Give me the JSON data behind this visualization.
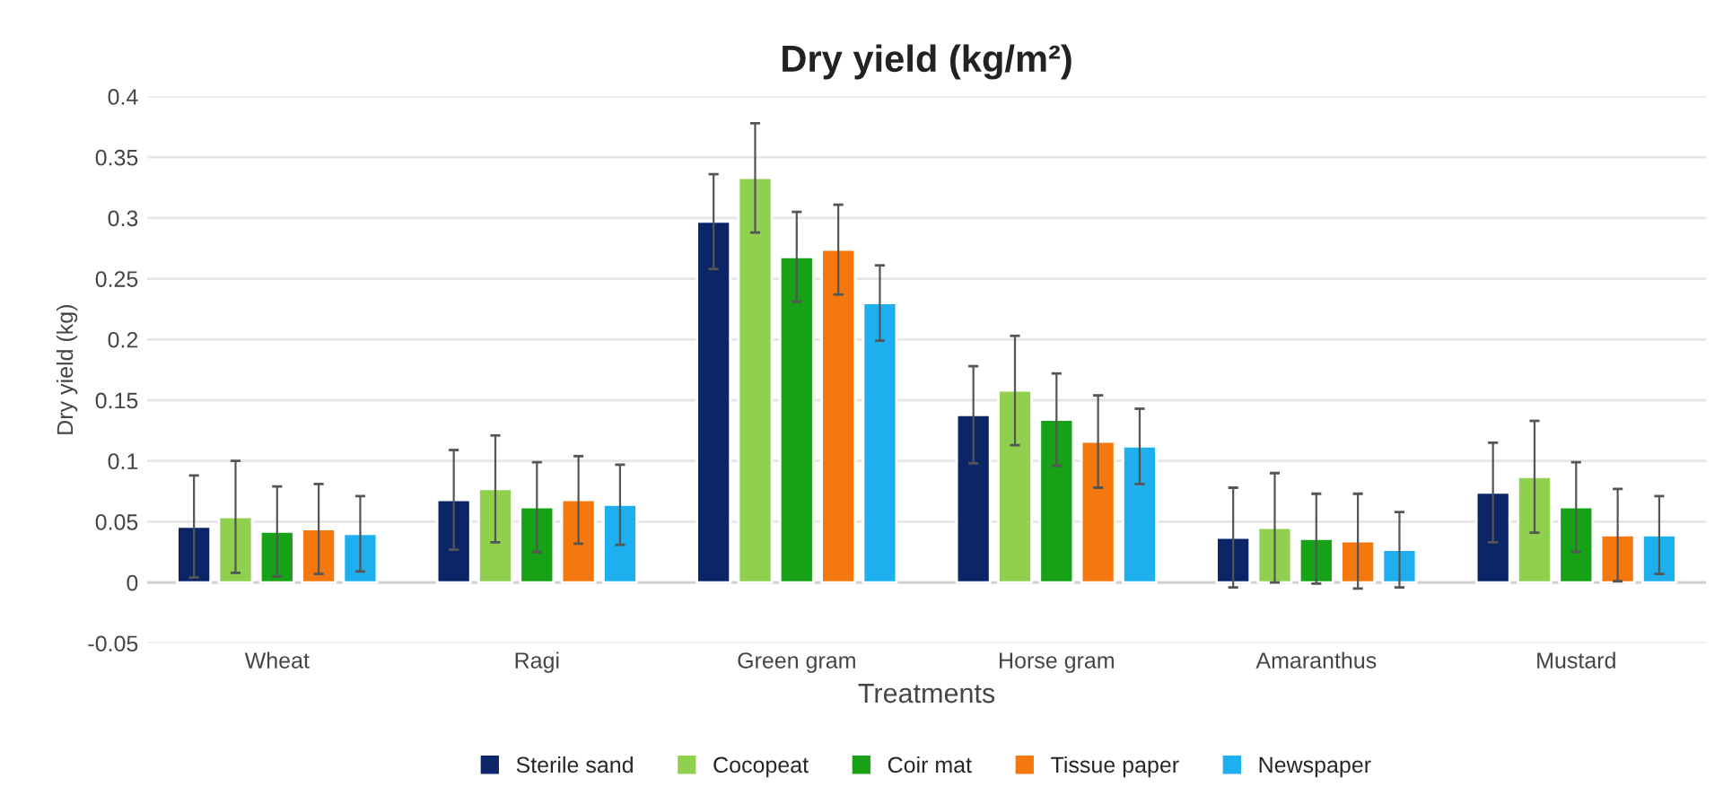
{
  "chart_data": {
    "type": "bar",
    "title": "Dry yield (kg/m²)",
    "xlabel": "Treatments",
    "ylabel": "Dry yield (kg)",
    "categories": [
      "Wheat",
      "Ragi",
      "Green gram",
      "Horse gram",
      "Amaranthus",
      "Mustard"
    ],
    "series": [
      {
        "name": "Sterile sand",
        "color": "#0b2566",
        "values": [
          0.046,
          0.068,
          0.297,
          0.138,
          0.037,
          0.074
        ],
        "errors": [
          0.042,
          0.041,
          0.039,
          0.04,
          0.041,
          0.041
        ]
      },
      {
        "name": "Cocopeat",
        "color": "#8fd14f",
        "values": [
          0.054,
          0.077,
          0.333,
          0.158,
          0.045,
          0.087
        ],
        "errors": [
          0.046,
          0.044,
          0.045,
          0.045,
          0.045,
          0.046
        ]
      },
      {
        "name": "Coir mat",
        "color": "#16a116",
        "values": [
          0.042,
          0.062,
          0.268,
          0.134,
          0.036,
          0.062
        ],
        "errors": [
          0.037,
          0.037,
          0.037,
          0.038,
          0.037,
          0.037
        ]
      },
      {
        "name": "Tissue paper",
        "color": "#f5780f",
        "values": [
          0.044,
          0.068,
          0.274,
          0.116,
          0.034,
          0.039
        ],
        "errors": [
          0.037,
          0.036,
          0.037,
          0.038,
          0.039,
          0.038
        ]
      },
      {
        "name": "Newspaper",
        "color": "#1eb0ee",
        "values": [
          0.04,
          0.064,
          0.23,
          0.112,
          0.027,
          0.039
        ],
        "errors": [
          0.031,
          0.033,
          0.031,
          0.031,
          0.031,
          0.032
        ]
      }
    ],
    "ylim": [
      -0.05,
      0.4
    ],
    "yticks": [
      {
        "value": -0.05,
        "label": "-0.05"
      },
      0,
      0.05,
      0.1,
      0.15,
      0.2,
      0.25,
      0.3,
      0.35,
      0.4
    ],
    "grid": "y",
    "legend": "bottom"
  }
}
